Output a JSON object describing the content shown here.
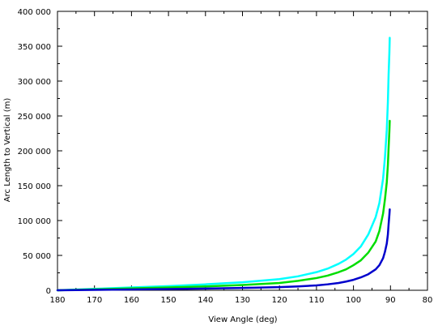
{
  "chart_data": {
    "type": "line",
    "xlabel": "View Angle (deg)",
    "ylabel": "Arc Length to Vertical (m)",
    "xlim": [
      180,
      80
    ],
    "ylim": [
      0,
      400000
    ],
    "x_reversed": true,
    "grid": false,
    "x_ticks": [
      180,
      170,
      160,
      150,
      140,
      130,
      120,
      110,
      100,
      90,
      80
    ],
    "x_tick_labels": [
      "180",
      "170",
      "160",
      "150",
      "140",
      "130",
      "120",
      "110",
      "100",
      "90",
      "80"
    ],
    "y_ticks": [
      0,
      50000,
      100000,
      150000,
      200000,
      250000,
      300000,
      350000,
      400000
    ],
    "y_tick_labels": [
      "0",
      "50 000",
      "100 000",
      "150 000",
      "200 000",
      "250 000",
      "300 000",
      "350 000",
      "400 000"
    ],
    "series": [
      {
        "color": "#00ffff",
        "points": [
          [
            180,
            0
          ],
          [
            170,
            2000
          ],
          [
            160,
            4000
          ],
          [
            150,
            6000
          ],
          [
            140,
            8500
          ],
          [
            130,
            11500
          ],
          [
            120,
            16000
          ],
          [
            115,
            20000
          ],
          [
            110,
            26000
          ],
          [
            107,
            31000
          ],
          [
            104,
            38000
          ],
          [
            102,
            44000
          ],
          [
            100,
            52000
          ],
          [
            98,
            63000
          ],
          [
            96,
            80000
          ],
          [
            94,
            105000
          ],
          [
            93,
            125000
          ],
          [
            92,
            160000
          ],
          [
            91.5,
            190000
          ],
          [
            91,
            230000
          ],
          [
            90.7,
            270000
          ],
          [
            90.5,
            310000
          ],
          [
            90.3,
            340000
          ],
          [
            90.2,
            362000
          ]
        ]
      },
      {
        "color": "#00dd00",
        "points": [
          [
            180,
            0
          ],
          [
            170,
            1300
          ],
          [
            160,
            2700
          ],
          [
            150,
            4000
          ],
          [
            140,
            5500
          ],
          [
            130,
            7500
          ],
          [
            120,
            10500
          ],
          [
            115,
            13500
          ],
          [
            110,
            17500
          ],
          [
            107,
            21000
          ],
          [
            104,
            26000
          ],
          [
            102,
            30000
          ],
          [
            100,
            36000
          ],
          [
            98,
            43000
          ],
          [
            96,
            54000
          ],
          [
            94,
            70000
          ],
          [
            93,
            85000
          ],
          [
            92,
            110000
          ],
          [
            91.5,
            130000
          ],
          [
            91,
            155000
          ],
          [
            90.7,
            180000
          ],
          [
            90.5,
            205000
          ],
          [
            90.3,
            228000
          ],
          [
            90.2,
            243000
          ]
        ]
      },
      {
        "color": "#0000cc",
        "points": [
          [
            180,
            0
          ],
          [
            170,
            600
          ],
          [
            160,
            1200
          ],
          [
            150,
            1800
          ],
          [
            140,
            2500
          ],
          [
            130,
            3300
          ],
          [
            120,
            4500
          ],
          [
            115,
            5500
          ],
          [
            110,
            7000
          ],
          [
            107,
            8500
          ],
          [
            104,
            10500
          ],
          [
            102,
            12500
          ],
          [
            100,
            15000
          ],
          [
            98,
            18500
          ],
          [
            96,
            23000
          ],
          [
            94,
            30000
          ],
          [
            93,
            36000
          ],
          [
            92,
            46000
          ],
          [
            91.5,
            55000
          ],
          [
            91,
            67000
          ],
          [
            90.7,
            80000
          ],
          [
            90.5,
            95000
          ],
          [
            90.3,
            108000
          ],
          [
            90.2,
            116000
          ]
        ]
      }
    ]
  }
}
